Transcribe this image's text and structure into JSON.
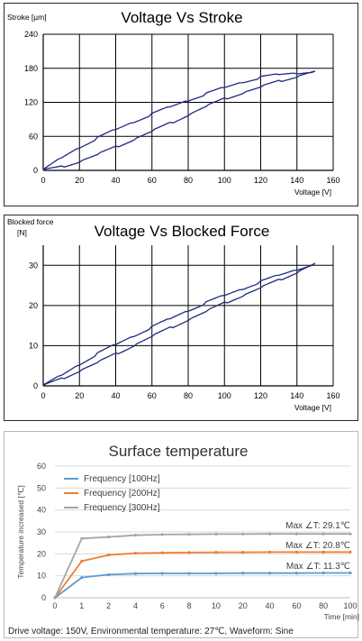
{
  "charts": [
    {
      "chart_data": {
        "type": "line",
        "title": "Voltage Vs Stroke",
        "ylabel": "Stroke [µm]",
        "xlabel": "Voltage [V]",
        "xlim": [
          0,
          160
        ],
        "ylim": [
          0,
          240
        ],
        "xticks": [
          "0",
          "20",
          "40",
          "60",
          "80",
          "100",
          "120",
          "140",
          "160"
        ],
        "yticks": [
          "0",
          "60",
          "120",
          "180",
          "240"
        ],
        "grid": true,
        "series": [
          {
            "x": [
              0,
              10,
              20,
              30,
              40,
              50,
              60,
              70,
              80,
              90,
              100,
              110,
              120,
              130,
              140,
              150
            ],
            "y": [
              0,
              22,
              41,
              57,
              72,
              86,
              99,
              112,
              124,
              135,
              146,
              156,
              164,
              169,
              172,
              175
            ]
          },
          {
            "x": [
              150,
              140,
              130,
              120,
              110,
              100,
              90,
              80,
              70,
              60,
              50,
              40,
              30,
              20,
              10,
              0
            ],
            "y": [
              175,
              166,
              157,
              147,
              137,
              126,
              113,
              98,
              83,
              69,
              55,
              41,
              28,
              16,
              6,
              0
            ]
          }
        ]
      }
    },
    {
      "chart_data": {
        "type": "line",
        "title": "Voltage Vs Blocked Force",
        "ylabel": "Blocked force",
        "ylabel_unit": "[N]",
        "xlabel": "Voltage [V]",
        "xlim": [
          0,
          160
        ],
        "ylim": [
          0,
          35
        ],
        "xticks": [
          "0",
          "20",
          "40",
          "60",
          "80",
          "100",
          "120",
          "140",
          "160"
        ],
        "yticks": [
          "0",
          "10",
          "20",
          "30"
        ],
        "grid": true,
        "series": [
          {
            "x": [
              0,
              10,
              20,
              30,
              40,
              50,
              60,
              70,
              80,
              90,
              100,
              110,
              120,
              130,
              140,
              150
            ],
            "y": [
              0,
              2.6,
              5.4,
              8,
              10.3,
              12.5,
              14.6,
              16.7,
              18.8,
              20.7,
              22.5,
              24.2,
              25.9,
              27.5,
              29,
              30.5
            ]
          },
          {
            "x": [
              150,
              140,
              130,
              120,
              110,
              100,
              90,
              80,
              70,
              60,
              50,
              40,
              30,
              20,
              10,
              0
            ],
            "y": [
              30.5,
              28.3,
              26.3,
              24.4,
              22.5,
              20.6,
              18.5,
              16.5,
              14.4,
              12.3,
              10.1,
              7.9,
              5.8,
              3.8,
              1.7,
              0
            ]
          }
        ]
      }
    },
    {
      "chart_data": {
        "type": "line",
        "title": "Surface temperature",
        "ylabel": "Temperature increased [℃]",
        "xlabel": "Time [min]",
        "ylim": [
          0,
          60
        ],
        "yticks": [
          "0",
          "10",
          "20",
          "30",
          "40",
          "50",
          "60"
        ],
        "categories": [
          "0",
          "1",
          "2",
          "4",
          "6",
          "8",
          "10",
          "20",
          "40",
          "60",
          "80",
          "100"
        ],
        "grid": true,
        "legend_position": "top-left",
        "series": [
          {
            "name": "Frequency [100Hz]",
            "color": "#5b9bd5",
            "values": [
              0,
              9.2,
              10.5,
              11,
              11.1,
              11.1,
              11.1,
              11.2,
              11.2,
              11.2,
              11.3,
              11.3
            ]
          },
          {
            "name": "Frequency [200Hz]",
            "color": "#ed7d31",
            "values": [
              0,
              16.7,
              19.5,
              20.3,
              20.5,
              20.6,
              20.7,
              20.7,
              20.8,
              20.8,
              20.8,
              20.8
            ]
          },
          {
            "name": "Frequency [300Hz]",
            "color": "#a5a5a5",
            "values": [
              0,
              27,
              27.7,
              28.5,
              28.8,
              28.9,
              29,
              29,
              29.1,
              29.1,
              29.1,
              29.1
            ]
          }
        ],
        "annotations": [
          "Max ∠T: 29.1℃",
          "Max ∠T: 20.8℃",
          "Max ∠T: 11.3℃"
        ],
        "caption": "Drive voltage: 150V, Environmental temperature: 27℃, Waveform: Sine"
      }
    }
  ]
}
